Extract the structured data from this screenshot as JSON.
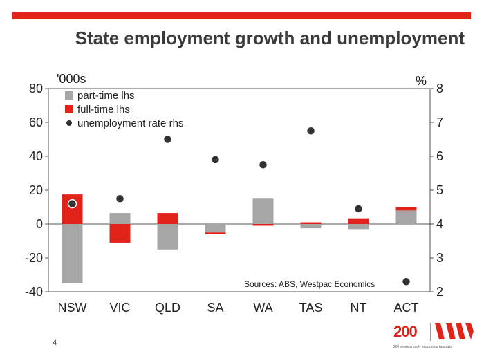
{
  "header": {
    "title": "State employment growth and unemployment"
  },
  "footer": {
    "page_number": "4"
  },
  "logo": {
    "number": "200",
    "tagline": "200 years proudly supporting Australia"
  },
  "colors": {
    "accent": "#e2231a",
    "part_time": "#a6a6a6",
    "full_time": "#e2231a",
    "unemployment": "#333333"
  },
  "chart_data": {
    "type": "bar",
    "categories": [
      "NSW",
      "VIC",
      "QLD",
      "SA",
      "WA",
      "TAS",
      "NT",
      "ACT"
    ],
    "series": [
      {
        "name": "part-time lhs",
        "kind": "bar",
        "axis": "left",
        "values": [
          -35,
          6.5,
          -15,
          -5,
          15,
          -2.5,
          -3,
          8
        ]
      },
      {
        "name": "full-time lhs",
        "kind": "bar",
        "axis": "left",
        "values": [
          17.5,
          -11,
          6.5,
          -1,
          -1,
          1,
          3,
          2
        ]
      },
      {
        "name": "unemployment rate rhs",
        "kind": "scatter",
        "axis": "right",
        "values": [
          4.6,
          4.75,
          6.5,
          5.9,
          5.75,
          6.75,
          4.45,
          2.3
        ]
      }
    ],
    "left_axis": {
      "unit": "'000s",
      "ylim": [
        -40,
        80
      ],
      "ticks": [
        "80",
        "60",
        "40",
        "20",
        "0",
        "-20",
        "-40"
      ]
    },
    "right_axis": {
      "unit": "%",
      "ylim": [
        2,
        8
      ],
      "ticks": [
        "8",
        "7",
        "6",
        "5",
        "4",
        "3",
        "2"
      ]
    },
    "stacked": true,
    "legend": "top-left",
    "annotation": "Sources: ABS, Westpac Economics"
  }
}
